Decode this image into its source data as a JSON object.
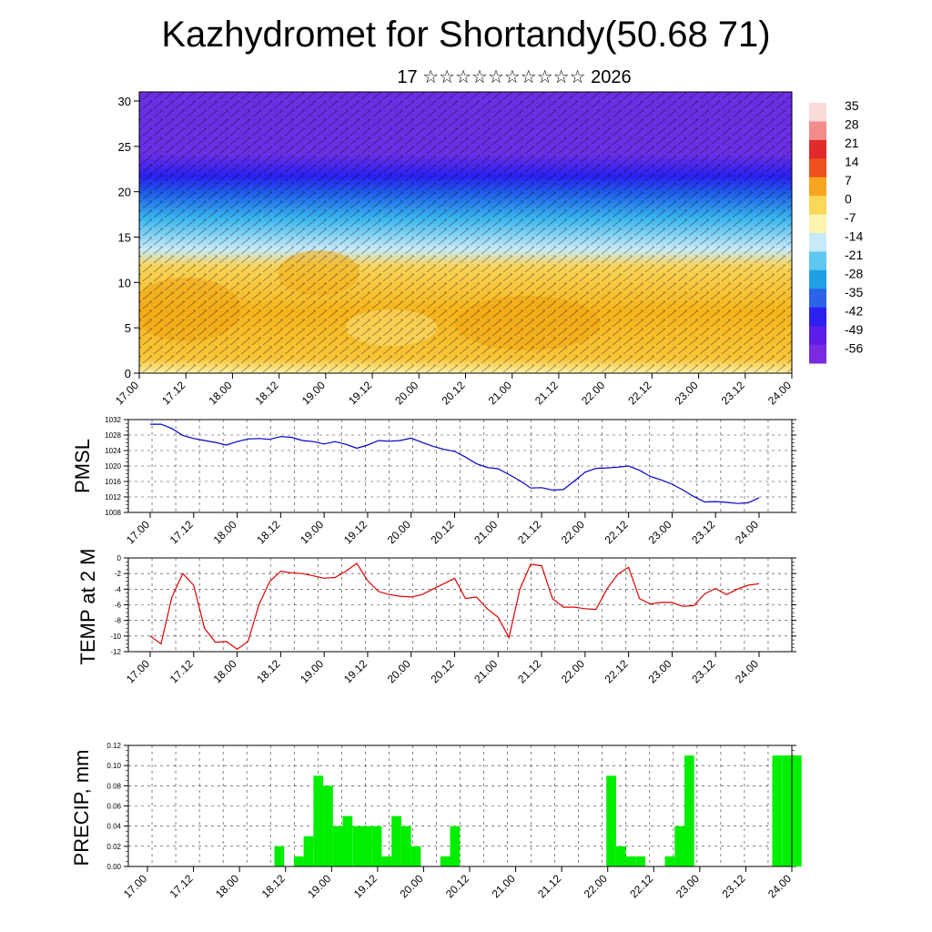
{
  "title": "Kazhydromet for Shortandy(50.68 71)",
  "subtitle": "17 ☆☆☆☆☆☆☆☆☆☆ 2026",
  "time_labels": [
    "17.00",
    "17.12",
    "18.00",
    "18.12",
    "19.00",
    "19.12",
    "20.00",
    "20.12",
    "21.00",
    "21.12",
    "22.00",
    "22.12",
    "23.00",
    "23.12",
    "24.00"
  ],
  "chart_data": [
    {
      "type": "heatmap",
      "name": "upper-air cross-section",
      "yticks": [
        "0",
        "5",
        "10",
        "15",
        "20",
        "25",
        "30"
      ],
      "ylim": [
        0,
        31
      ],
      "colorbar_labels": [
        "35",
        "28",
        "21",
        "14",
        "7",
        "0",
        "-7",
        "-14",
        "-21",
        "-28",
        "-35",
        "-42",
        "-49",
        "-56"
      ],
      "colorbar_colors": [
        "#fbdada",
        "#f28c8c",
        "#e22a2a",
        "#f0501e",
        "#f7a51e",
        "#fbd85a",
        "#fdf4b0",
        "#c8eaf8",
        "#5ec8f0",
        "#1e9fe6",
        "#2a62e8",
        "#2b20f0",
        "#5a1ce6",
        "#7a2ae0"
      ],
      "cross_section_colors": {
        "warm": "#f6b51c",
        "cold_mid": "#3ab6ef",
        "high": "#6a2fe3"
      }
    },
    {
      "type": "line",
      "ylabel": "PMSL",
      "yticks": [
        "1032",
        "1028",
        "1024",
        "1020",
        "1016",
        "1012",
        "1008"
      ],
      "ylim": [
        1008,
        1032
      ],
      "color": "#0000cc",
      "x": [
        0,
        3,
        6,
        9,
        12,
        15,
        18,
        21,
        24,
        27,
        30,
        33,
        36,
        39,
        42,
        45,
        48,
        51,
        54,
        57,
        60,
        63,
        66,
        69,
        72,
        75,
        78,
        81,
        84,
        87,
        90,
        93,
        96,
        99,
        102,
        105,
        108,
        111,
        114,
        117,
        120,
        123,
        126,
        129,
        132,
        135,
        138,
        141,
        144,
        147,
        150,
        153,
        156,
        159,
        162,
        165,
        168
      ],
      "values": [
        1030.8,
        1030.8,
        1029.7,
        1027.9,
        1027.1,
        1026.6,
        1026.1,
        1025.4,
        1026.3,
        1027.0,
        1027.1,
        1026.9,
        1027.6,
        1027.4,
        1026.6,
        1026.3,
        1025.7,
        1026.3,
        1025.6,
        1024.6,
        1025.4,
        1026.6,
        1026.4,
        1026.6,
        1027.2,
        1026.1,
        1025.1,
        1024.3,
        1023.8,
        1022.3,
        1020.6,
        1019.6,
        1019.3,
        1017.8,
        1016.2,
        1014.3,
        1014.4,
        1013.8,
        1013.9,
        1016.1,
        1018.4,
        1019.4,
        1019.5,
        1019.7,
        1020.0,
        1018.9,
        1017.3,
        1016.4,
        1015.3,
        1013.8,
        1012.1,
        1010.7,
        1010.8,
        1010.6,
        1010.3,
        1010.5,
        1011.8
      ]
    },
    {
      "type": "line",
      "ylabel": "TEMP at 2 M",
      "yticks": [
        "0",
        "-2",
        "-4",
        "-6",
        "-8",
        "-10",
        "-12"
      ],
      "ylim": [
        -12,
        0
      ],
      "color": "#dd0000",
      "x": [
        0,
        3,
        6,
        9,
        12,
        15,
        18,
        21,
        24,
        27,
        30,
        33,
        36,
        39,
        42,
        45,
        48,
        51,
        54,
        57,
        60,
        63,
        66,
        69,
        72,
        75,
        78,
        81,
        84,
        87,
        90,
        93,
        96,
        99,
        102,
        105,
        108,
        111,
        114,
        117,
        120,
        123,
        126,
        129,
        132,
        135,
        138,
        141,
        144,
        147,
        150,
        153,
        156,
        159,
        162,
        165,
        168
      ],
      "values": [
        -10.0,
        -11.0,
        -5.0,
        -2.0,
        -3.5,
        -9.0,
        -10.8,
        -10.7,
        -11.7,
        -10.7,
        -6.0,
        -3.0,
        -1.7,
        -1.9,
        -2.0,
        -2.3,
        -2.6,
        -2.5,
        -1.7,
        -0.7,
        -2.9,
        -4.3,
        -4.7,
        -4.9,
        -5.0,
        -4.7,
        -4.0,
        -3.3,
        -2.6,
        -5.2,
        -5.0,
        -6.5,
        -7.6,
        -10.2,
        -4.0,
        -0.8,
        -1.0,
        -5.2,
        -6.3,
        -6.3,
        -6.5,
        -6.6,
        -4.0,
        -2.1,
        -1.2,
        -5.2,
        -5.9,
        -5.7,
        -5.7,
        -6.2,
        -6.1,
        -4.6,
        -3.9,
        -4.7,
        -4.0,
        -3.5,
        -3.3
      ]
    },
    {
      "type": "bar",
      "ylabel": "PRECIP, mm",
      "yticks": [
        "0.12",
        "0.10",
        "0.08",
        "0.06",
        "0.04",
        "0.02",
        "0.00"
      ],
      "ylim": [
        0,
        0.12
      ],
      "color": "#00ee00",
      "bar_start_hours": [
        39,
        45,
        48,
        51,
        54,
        57,
        60,
        63,
        66,
        69,
        72,
        75,
        78,
        81,
        90,
        93,
        141,
        144,
        147,
        150,
        159,
        162,
        165,
        192,
        195,
        198
      ],
      "bar_hours_width": 3,
      "values": [
        0.02,
        0.01,
        0.03,
        0.09,
        0.08,
        0.04,
        0.05,
        0.04,
        0.04,
        0.04,
        0.01,
        0.05,
        0.04,
        0.02,
        0.01,
        0.04,
        0.09,
        0.02,
        0.01,
        0.01,
        0.01,
        0.04,
        0.11,
        0.11,
        0.11,
        0.11
      ]
    }
  ]
}
